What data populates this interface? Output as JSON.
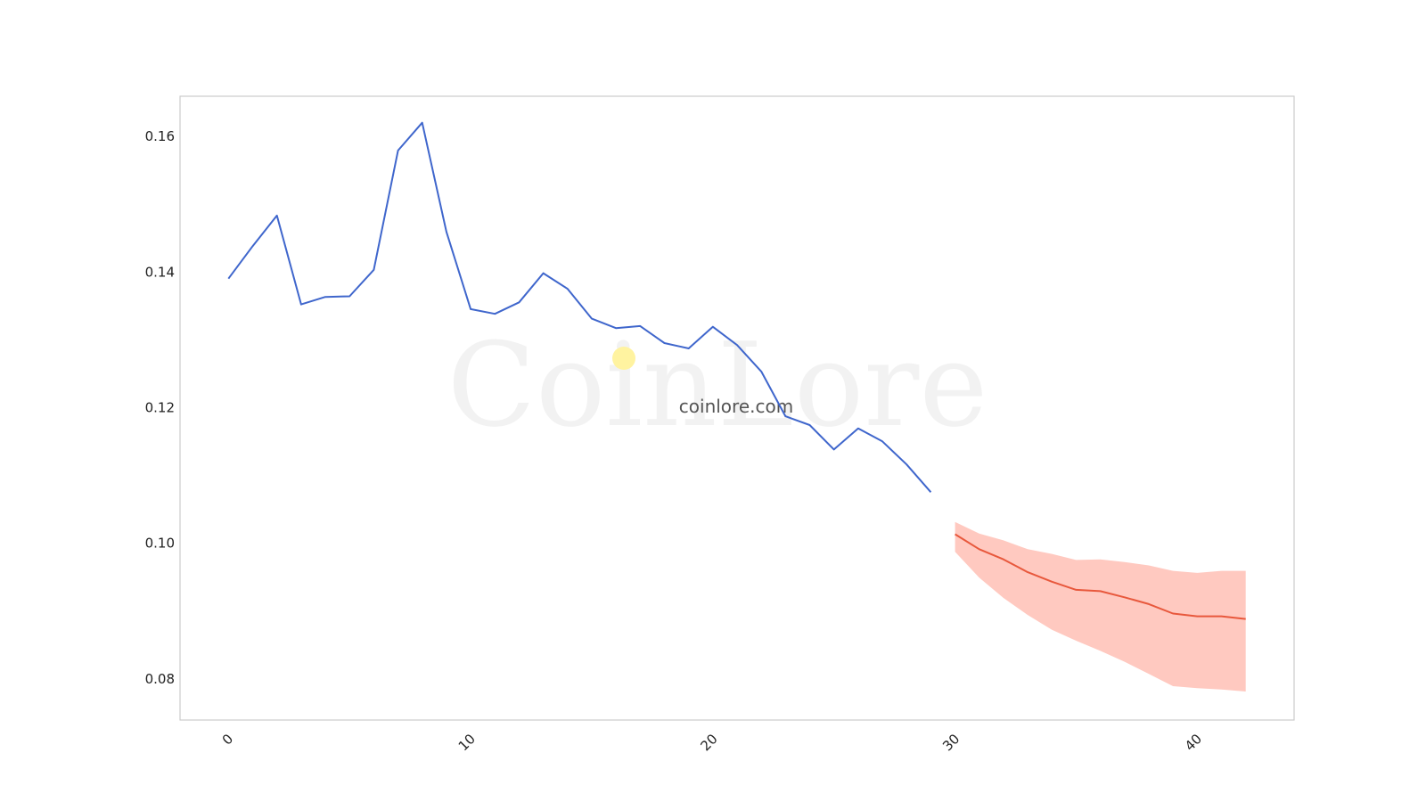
{
  "watermark": {
    "logo_text": "CoinLore",
    "site_text": "coinlore.com",
    "dot_color": "#fff3a0"
  },
  "chart_data": {
    "type": "line",
    "x_ticks": [
      "0",
      "10",
      "20",
      "30",
      "40"
    ],
    "y_ticks": [
      "0.08",
      "0.10",
      "0.12",
      "0.14",
      "0.16"
    ],
    "xlim": [
      -2,
      44
    ],
    "ylim": [
      0.074,
      0.166
    ],
    "grid": false,
    "history": {
      "color": "#3f66cc",
      "x": [
        0,
        1,
        2,
        3,
        4,
        5,
        6,
        7,
        8,
        9,
        10,
        11,
        12,
        13,
        14,
        15,
        16,
        17,
        18,
        19,
        20,
        21,
        22,
        23,
        24,
        25,
        26,
        27,
        28,
        29
      ],
      "y": [
        0.1391,
        0.1439,
        0.1484,
        0.1353,
        0.1364,
        0.1365,
        0.1404,
        0.158,
        0.1621,
        0.146,
        0.1346,
        0.1339,
        0.1356,
        0.1399,
        0.1376,
        0.1332,
        0.1318,
        0.1321,
        0.1296,
        0.1288,
        0.132,
        0.1293,
        0.1254,
        0.1188,
        0.1175,
        0.1139,
        0.117,
        0.1151,
        0.1117,
        0.1076
      ]
    },
    "forecast": {
      "color": "#e8583c",
      "band_color": "#ffc9c0",
      "x": [
        30,
        31,
        32,
        33,
        34,
        35,
        36,
        37,
        38,
        39,
        40,
        41,
        42
      ],
      "y": [
        0.1014,
        0.0992,
        0.0977,
        0.0958,
        0.0944,
        0.0932,
        0.093,
        0.0921,
        0.0911,
        0.0897,
        0.0893,
        0.0893,
        0.0889
      ],
      "upper": [
        0.1032,
        0.1015,
        0.1005,
        0.0992,
        0.0985,
        0.0976,
        0.0977,
        0.0973,
        0.0968,
        0.096,
        0.0957,
        0.096,
        0.096
      ],
      "lower": [
        0.0988,
        0.095,
        0.092,
        0.0895,
        0.0873,
        0.0857,
        0.0842,
        0.0826,
        0.0808,
        0.079,
        0.0787,
        0.0785,
        0.0782
      ]
    }
  }
}
